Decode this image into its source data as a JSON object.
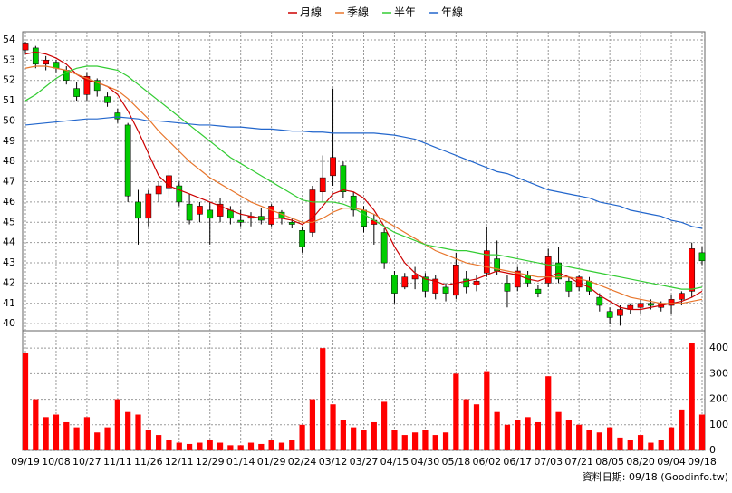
{
  "chart_data": [
    {
      "type": "candlestick",
      "x": [
        "09/19",
        null,
        null,
        "10/08",
        null,
        null,
        "10/27",
        null,
        null,
        "11/11",
        null,
        null,
        "11/26",
        null,
        null,
        "12/11",
        null,
        null,
        "12/29",
        null,
        null,
        "01/14",
        null,
        null,
        "01/29",
        null,
        null,
        "02/24",
        null,
        null,
        "03/12",
        null,
        null,
        "03/27",
        null,
        null,
        "04/15",
        null,
        null,
        "04/30",
        null,
        null,
        "05/18",
        null,
        null,
        "06/02",
        null,
        null,
        "06/17",
        null,
        null,
        "07/03",
        null,
        null,
        "07/21",
        null,
        null,
        "08/05",
        null,
        null,
        "08/20",
        null,
        null,
        "09/04",
        null,
        null,
        "09/18"
      ],
      "open": [
        53.5,
        53.6,
        52.8,
        52.9,
        52.5,
        51.6,
        51.3,
        52.0,
        51.2,
        50.4,
        49.8,
        46.0,
        45.2,
        46.4,
        46.7,
        46.8,
        45.9,
        45.4,
        45.6,
        45.3,
        45.6,
        45.1,
        45.2,
        45.3,
        44.9,
        45.5,
        45.0,
        44.6,
        44.5,
        46.5,
        47.3,
        47.8,
        46.3,
        45.6,
        44.9,
        44.5,
        42.4,
        41.8,
        42.2,
        42.3,
        41.5,
        41.8,
        41.4,
        42.2,
        41.9,
        42.5,
        43.2,
        42.0,
        41.8,
        42.4,
        41.7,
        42.0,
        43.0,
        42.1,
        41.8,
        42.1,
        41.3,
        40.6,
        40.4,
        40.7,
        40.8,
        41.0,
        40.8,
        40.9,
        41.2,
        41.6,
        43.5
      ],
      "high": [
        53.9,
        53.7,
        53.2,
        53.0,
        52.7,
        51.9,
        52.4,
        52.1,
        51.4,
        50.6,
        49.9,
        46.6,
        46.6,
        47.0,
        47.6,
        47.0,
        46.4,
        46.0,
        46.0,
        46.2,
        45.8,
        45.6,
        45.5,
        45.7,
        45.9,
        45.6,
        45.2,
        44.8,
        46.8,
        48.3,
        51.6,
        48.0,
        46.5,
        45.8,
        45.4,
        44.7,
        42.6,
        42.5,
        42.8,
        42.5,
        42.4,
        42.0,
        43.5,
        42.6,
        42.4,
        44.8,
        44.1,
        42.4,
        42.8,
        42.6,
        41.9,
        43.7,
        43.8,
        42.3,
        42.4,
        42.3,
        41.5,
        40.8,
        40.9,
        41.0,
        41.2,
        41.2,
        41.1,
        41.4,
        41.6,
        44.0,
        43.8
      ],
      "low": [
        53.3,
        52.6,
        52.5,
        52.4,
        51.8,
        51.0,
        51.0,
        51.2,
        50.7,
        49.9,
        46.0,
        43.9,
        44.8,
        46.0,
        46.2,
        45.8,
        44.9,
        45.0,
        43.9,
        45.0,
        44.9,
        44.8,
        44.8,
        44.9,
        44.8,
        44.9,
        44.7,
        43.5,
        44.3,
        46.0,
        46.8,
        46.2,
        45.3,
        44.5,
        43.9,
        42.7,
        41.0,
        41.7,
        41.7,
        41.3,
        41.2,
        41.1,
        41.2,
        41.5,
        41.6,
        42.3,
        42.4,
        40.8,
        41.6,
        41.8,
        41.3,
        41.8,
        42.0,
        41.3,
        41.6,
        41.4,
        40.6,
        40.0,
        39.9,
        40.5,
        40.5,
        40.7,
        40.6,
        40.5,
        40.9,
        41.3,
        42.9
      ],
      "close": [
        53.8,
        52.8,
        53.0,
        52.6,
        52.0,
        51.2,
        52.2,
        51.5,
        50.9,
        50.1,
        46.3,
        45.2,
        46.4,
        46.8,
        47.3,
        46.0,
        45.1,
        45.8,
        45.2,
        45.9,
        45.2,
        45.0,
        45.3,
        45.1,
        45.8,
        45.2,
        44.9,
        43.8,
        46.6,
        47.2,
        48.2,
        46.5,
        45.6,
        44.8,
        45.1,
        43.0,
        41.5,
        42.3,
        42.4,
        41.6,
        42.2,
        41.5,
        42.9,
        41.8,
        42.1,
        43.6,
        42.6,
        41.6,
        42.6,
        42.0,
        41.5,
        43.3,
        42.2,
        41.6,
        42.3,
        41.6,
        40.9,
        40.3,
        40.7,
        40.9,
        41.0,
        40.9,
        41.0,
        41.2,
        41.5,
        43.7,
        43.1
      ],
      "up_color": "#ff0000",
      "down_color": "#00cc00",
      "series": [
        {
          "name": "月線",
          "color": "#cc0000",
          "values": [
            53.3,
            53.4,
            53.3,
            53.1,
            52.8,
            52.3,
            52.0,
            51.9,
            51.7,
            51.3,
            50.5,
            49.5,
            48.4,
            47.3,
            46.8,
            46.6,
            46.4,
            46.2,
            46.0,
            45.8,
            45.6,
            45.4,
            45.3,
            45.2,
            45.2,
            45.2,
            45.1,
            44.9,
            45.2,
            45.8,
            46.4,
            46.6,
            46.5,
            46.2,
            45.6,
            44.8,
            43.8,
            43.0,
            42.5,
            42.2,
            42.1,
            41.9,
            42.0,
            42.1,
            42.2,
            42.4,
            42.6,
            42.5,
            42.4,
            42.2,
            42.1,
            42.3,
            42.5,
            42.3,
            42.0,
            41.8,
            41.4,
            41.1,
            40.8,
            40.7,
            40.7,
            40.8,
            40.9,
            41.0,
            41.1,
            41.3,
            41.6
          ]
        },
        {
          "name": "季線",
          "color": "#e8762c",
          "values": [
            52.6,
            52.7,
            52.7,
            52.6,
            52.5,
            52.3,
            52.1,
            51.9,
            51.7,
            51.5,
            51.1,
            50.6,
            50.1,
            49.5,
            49.0,
            48.5,
            48.0,
            47.6,
            47.2,
            46.9,
            46.6,
            46.3,
            46.0,
            45.8,
            45.6,
            45.4,
            45.2,
            45.0,
            45.0,
            45.2,
            45.5,
            45.7,
            45.7,
            45.6,
            45.4,
            45.1,
            44.8,
            44.5,
            44.2,
            43.9,
            43.6,
            43.4,
            43.2,
            43.0,
            42.9,
            42.8,
            42.7,
            42.6,
            42.5,
            42.4,
            42.3,
            42.3,
            42.3,
            42.3,
            42.2,
            42.1,
            41.9,
            41.7,
            41.5,
            41.3,
            41.2,
            41.1,
            41.0,
            41.0,
            41.0,
            41.1,
            41.2
          ]
        },
        {
          "name": "半年",
          "color": "#33cc33",
          "values": [
            51.0,
            51.3,
            51.7,
            52.1,
            52.4,
            52.6,
            52.7,
            52.7,
            52.6,
            52.5,
            52.2,
            51.8,
            51.4,
            51.0,
            50.6,
            50.2,
            49.8,
            49.4,
            49.0,
            48.6,
            48.2,
            47.9,
            47.6,
            47.3,
            47.0,
            46.7,
            46.4,
            46.1,
            46.0,
            46.0,
            46.0,
            45.9,
            45.7,
            45.4,
            45.1,
            44.8,
            44.5,
            44.3,
            44.1,
            43.9,
            43.8,
            43.7,
            43.6,
            43.6,
            43.5,
            43.4,
            43.4,
            43.3,
            43.2,
            43.1,
            43.0,
            42.9,
            42.9,
            42.8,
            42.7,
            42.6,
            42.5,
            42.4,
            42.3,
            42.2,
            42.1,
            42.0,
            41.9,
            41.8,
            41.7,
            41.7,
            41.8
          ]
        },
        {
          "name": "年線",
          "color": "#2266cc",
          "values": [
            49.8,
            49.85,
            49.9,
            49.95,
            50.0,
            50.05,
            50.1,
            50.1,
            50.15,
            50.2,
            50.15,
            50.1,
            50.0,
            50.0,
            49.95,
            49.9,
            49.85,
            49.8,
            49.8,
            49.75,
            49.7,
            49.7,
            49.65,
            49.6,
            49.6,
            49.55,
            49.5,
            49.5,
            49.45,
            49.45,
            49.4,
            49.4,
            49.4,
            49.4,
            49.4,
            49.35,
            49.3,
            49.2,
            49.1,
            48.9,
            48.7,
            48.5,
            48.3,
            48.1,
            47.9,
            47.7,
            47.5,
            47.4,
            47.2,
            47.0,
            46.8,
            46.6,
            46.5,
            46.4,
            46.3,
            46.2,
            46.0,
            45.9,
            45.8,
            45.6,
            45.5,
            45.4,
            45.3,
            45.1,
            45.0,
            44.8,
            44.7
          ]
        }
      ],
      "ylim": [
        39.65,
        54.4
      ],
      "yticks": [
        40,
        41,
        42,
        43,
        44,
        45,
        46,
        47,
        48,
        49,
        50,
        51,
        52,
        53,
        54
      ],
      "grid": true,
      "legend": "top"
    },
    {
      "type": "bar",
      "color": "#ff0000",
      "values": [
        380,
        200,
        130,
        140,
        110,
        90,
        130,
        70,
        90,
        200,
        150,
        140,
        80,
        60,
        40,
        30,
        25,
        30,
        40,
        30,
        20,
        20,
        30,
        25,
        40,
        30,
        40,
        100,
        200,
        400,
        180,
        120,
        90,
        80,
        110,
        190,
        80,
        60,
        70,
        80,
        60,
        70,
        300,
        200,
        180,
        310,
        150,
        100,
        120,
        130,
        110,
        290,
        150,
        120,
        100,
        80,
        70,
        90,
        50,
        40,
        60,
        30,
        40,
        90,
        160,
        420,
        140
      ],
      "ylim": [
        0,
        468
      ],
      "yticks": [
        0,
        100,
        200,
        300,
        400
      ],
      "grid": true
    }
  ],
  "footer": "資料日期: 09/18 (Goodinfo.tw)"
}
